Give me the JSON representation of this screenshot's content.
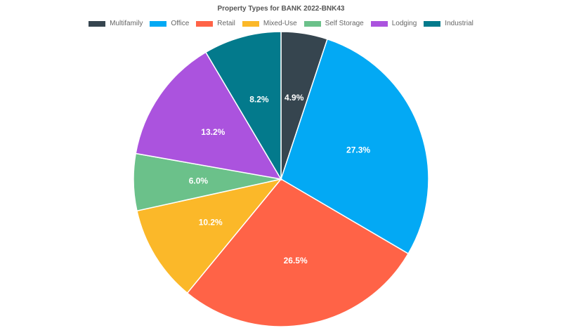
{
  "chart_data": {
    "type": "pie",
    "title": "Property Types for BANK 2022-BNK43",
    "legend_position": "top",
    "categories": [
      "Multifamily",
      "Office",
      "Retail",
      "Mixed-Use",
      "Self Storage",
      "Lodging",
      "Industrial"
    ],
    "values": [
      4.9,
      27.3,
      26.5,
      10.2,
      6.0,
      13.2,
      8.2
    ],
    "labels": [
      "4.9%",
      "27.3%",
      "26.5%",
      "10.2%",
      "6.0%",
      "13.2%",
      "8.2%"
    ],
    "colors": [
      "#36454f",
      "#03a9f4",
      "#ff6347",
      "#fbb829",
      "#6bc18a",
      "#ab53de",
      "#037a8c"
    ]
  }
}
